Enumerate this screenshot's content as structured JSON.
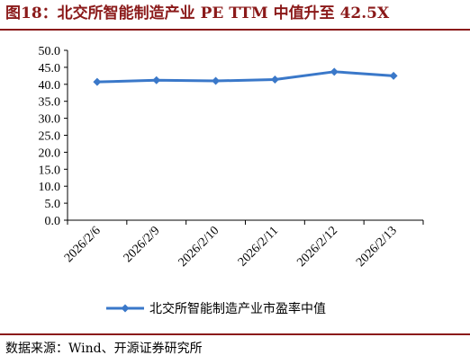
{
  "figure": {
    "title": "图18：北交所智能制造产业 PE TTM 中值升至 42.5X",
    "source": "数据来源：Wind、开源证券研究所"
  },
  "colors": {
    "title": "#8b1a1a",
    "rule": "#8b1a1a",
    "series": "#3a78c9",
    "axis": "#000000",
    "text": "#000000"
  },
  "chart_data": {
    "type": "line",
    "title": "",
    "xlabel": "",
    "ylabel": "",
    "categories": [
      "2026/2/6",
      "2026/2/9",
      "2026/2/10",
      "2026/2/11",
      "2026/2/12",
      "2026/2/13"
    ],
    "series": [
      {
        "name": "北交所智能制造产业市盈率中值",
        "values": [
          40.7,
          41.2,
          41.0,
          41.4,
          43.7,
          42.5
        ]
      }
    ],
    "ylim": [
      0,
      50
    ],
    "yticks": [
      "0.0",
      "5.0",
      "10.0",
      "15.0",
      "20.0",
      "25.0",
      "30.0",
      "35.0",
      "40.0",
      "45.0",
      "50.0"
    ],
    "grid": false,
    "legend": "bottom",
    "marker": "diamond"
  }
}
